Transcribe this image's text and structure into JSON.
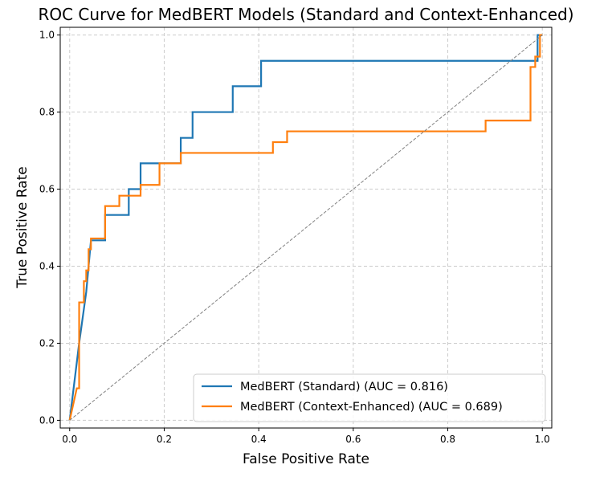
{
  "chart_data": {
    "type": "line",
    "title": "ROC Curve for MedBERT Models (Standard and Context-Enhanced)",
    "xlabel": "False Positive Rate",
    "ylabel": "True Positive Rate",
    "xlim": [
      -0.02,
      1.02
    ],
    "ylim": [
      -0.02,
      1.02
    ],
    "xticks": [
      0.0,
      0.2,
      0.4,
      0.6,
      0.8,
      1.0
    ],
    "xtick_labels": [
      "0.0",
      "0.2",
      "0.4",
      "0.6",
      "0.8",
      "1.0"
    ],
    "yticks": [
      0.0,
      0.2,
      0.4,
      0.6,
      0.8,
      1.0
    ],
    "ytick_labels": [
      "0.0",
      "0.2",
      "0.4",
      "0.6",
      "0.8",
      "1.0"
    ],
    "grid": true,
    "legend_position": "lower-right",
    "series": [
      {
        "name": "MedBERT (Standard) (AUC = 0.816)",
        "color": "#1f77b4",
        "x": [
          0.0,
          0.02,
          0.02,
          0.035,
          0.035,
          0.04,
          0.04,
          0.045,
          0.045,
          0.075,
          0.075,
          0.125,
          0.125,
          0.15,
          0.15,
          0.235,
          0.235,
          0.26,
          0.26,
          0.345,
          0.345,
          0.405,
          0.405,
          0.99,
          0.99,
          1.0
        ],
        "y": [
          0.0,
          0.2,
          0.2,
          0.333,
          0.333,
          0.4,
          0.4,
          0.467,
          0.467,
          0.467,
          0.533,
          0.533,
          0.6,
          0.6,
          0.667,
          0.667,
          0.733,
          0.733,
          0.8,
          0.8,
          0.867,
          0.867,
          0.933,
          0.933,
          1.0,
          1.0
        ]
      },
      {
        "name": "MedBERT (Context-Enhanced) (AUC = 0.689)",
        "color": "#ff7f0e",
        "x": [
          0.0,
          0.015,
          0.015,
          0.02,
          0.02,
          0.03,
          0.03,
          0.035,
          0.035,
          0.04,
          0.04,
          0.045,
          0.045,
          0.075,
          0.075,
          0.105,
          0.105,
          0.15,
          0.15,
          0.19,
          0.19,
          0.235,
          0.235,
          0.43,
          0.43,
          0.46,
          0.46,
          0.88,
          0.88,
          0.975,
          0.975,
          0.985,
          0.985,
          0.995,
          0.995,
          1.0
        ],
        "y": [
          0.0,
          0.083,
          0.083,
          0.083,
          0.306,
          0.306,
          0.361,
          0.361,
          0.389,
          0.389,
          0.444,
          0.444,
          0.472,
          0.472,
          0.556,
          0.556,
          0.583,
          0.583,
          0.611,
          0.611,
          0.667,
          0.667,
          0.694,
          0.694,
          0.722,
          0.722,
          0.75,
          0.75,
          0.778,
          0.778,
          0.917,
          0.917,
          0.944,
          0.944,
          1.0,
          1.0
        ]
      },
      {
        "color": "#808080",
        "style": "dashed",
        "x": [
          0.0,
          1.0
        ],
        "y": [
          0.0,
          1.0
        ]
      }
    ]
  }
}
